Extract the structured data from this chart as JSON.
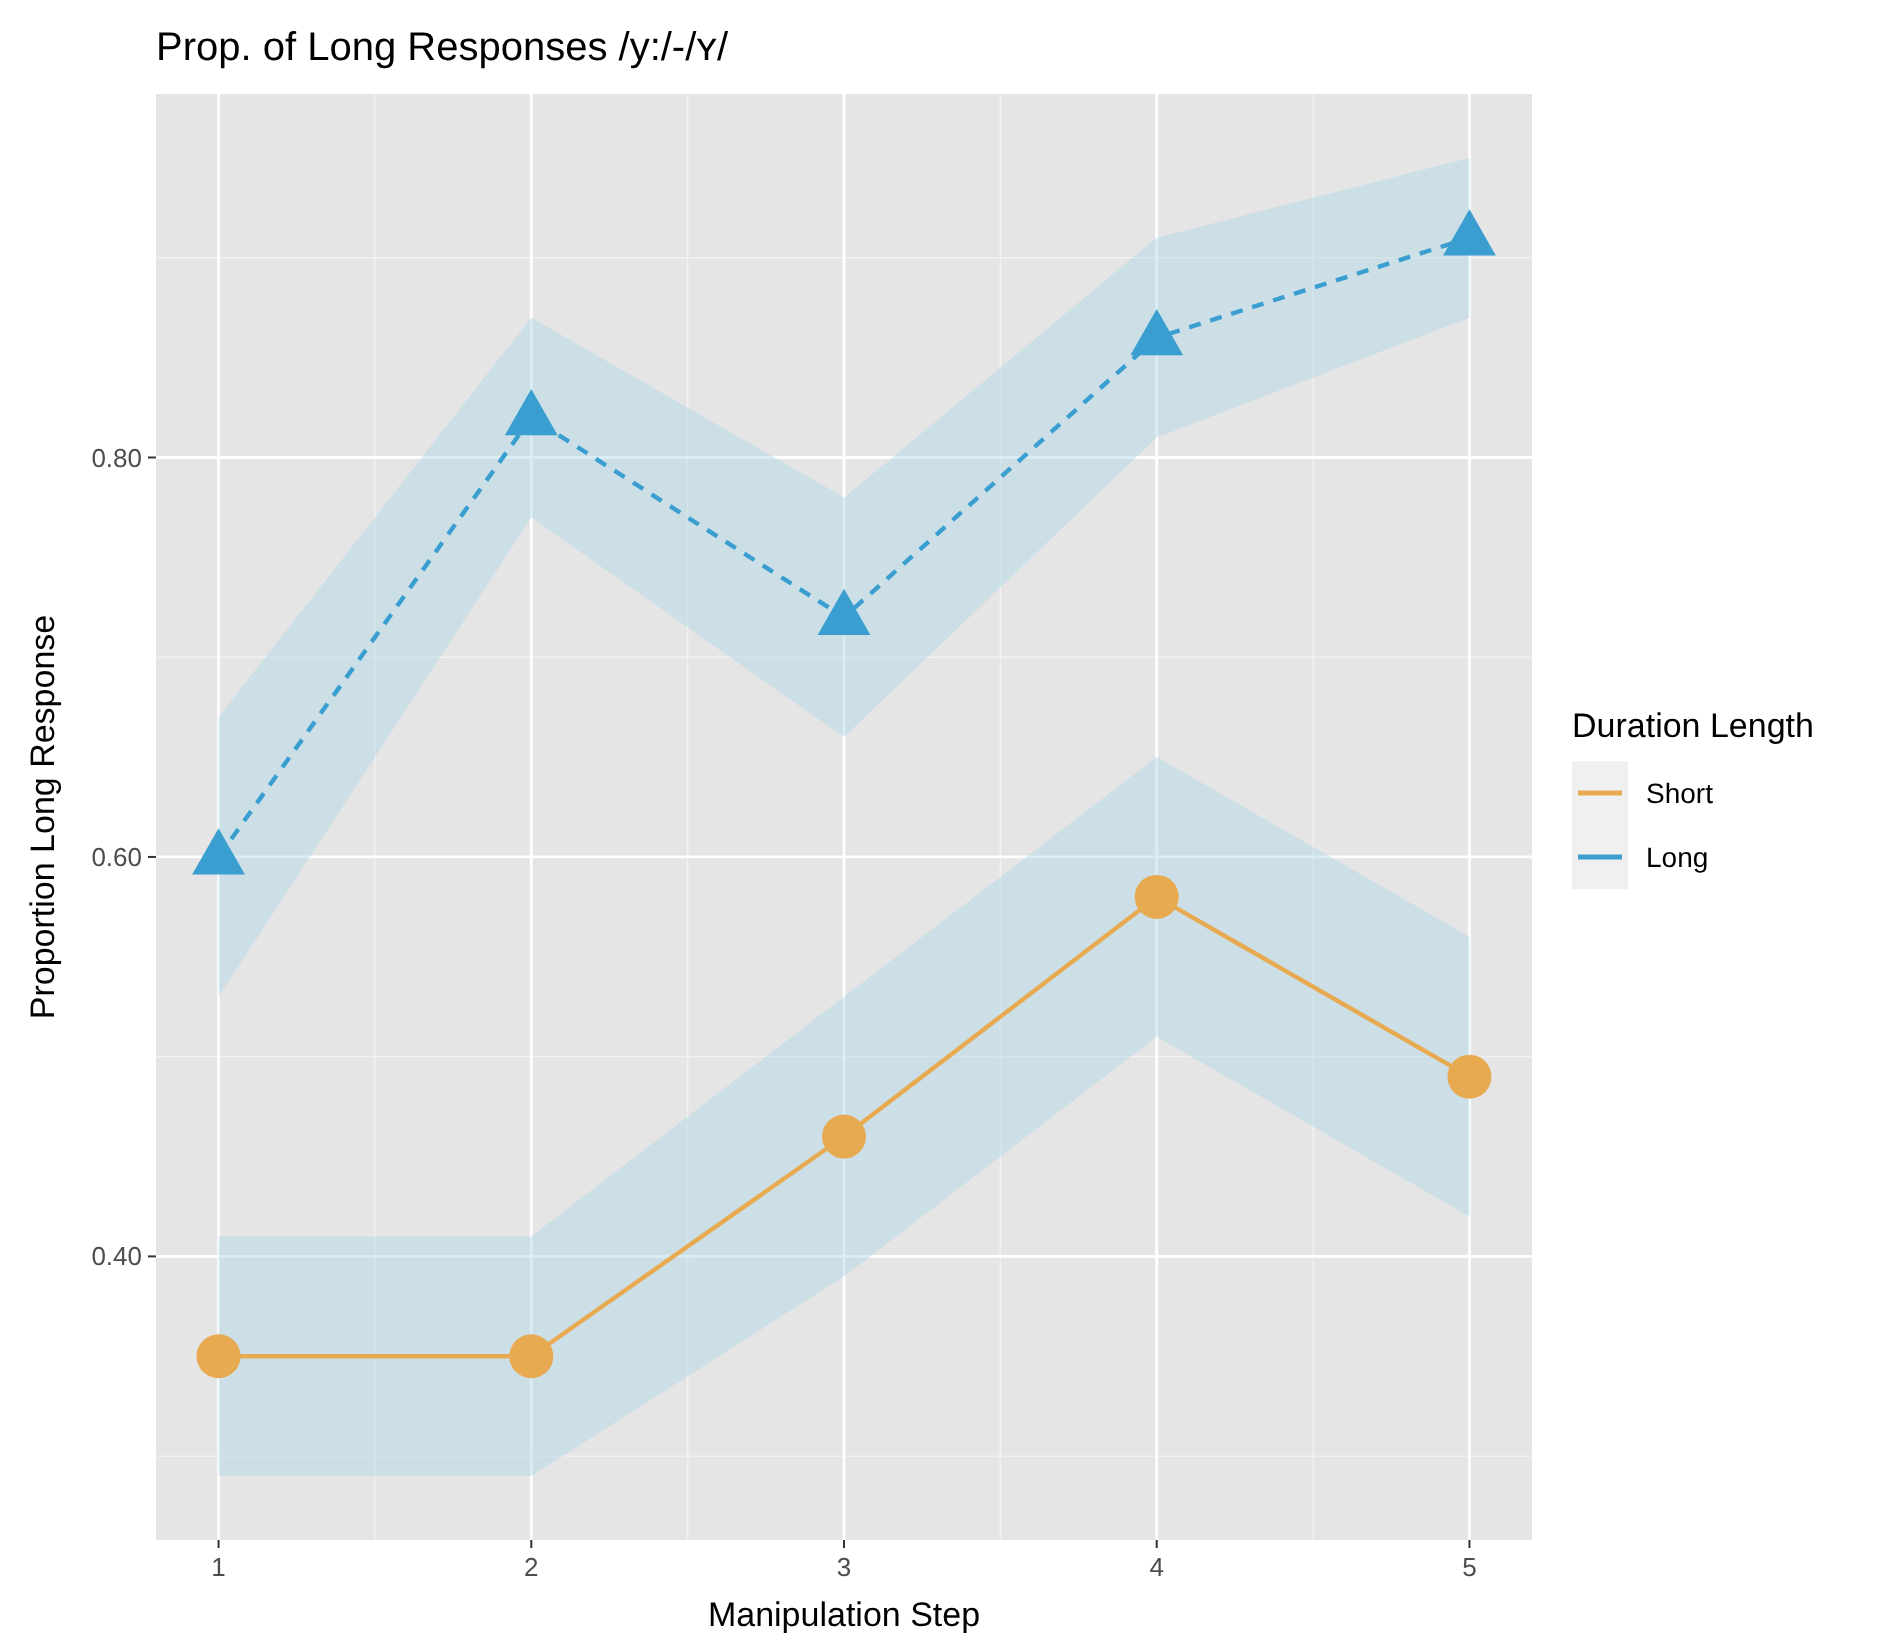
{
  "chart_data": {
    "type": "line",
    "title": "Prop. of Long Responses /y:/-/ʏ/",
    "xlabel": "Manipulation Step",
    "ylabel": "Proportion Long Response",
    "legend_title": "Duration Length",
    "x": [
      1,
      2,
      3,
      4,
      5
    ],
    "series": [
      {
        "name": "Short",
        "color": "#e8aa50",
        "values": [
          0.35,
          0.35,
          0.46,
          0.58,
          0.49
        ],
        "lower": [
          0.29,
          0.29,
          0.39,
          0.51,
          0.42
        ],
        "upper": [
          0.41,
          0.41,
          0.53,
          0.65,
          0.56
        ],
        "marker": "circle",
        "line_style": "solid"
      },
      {
        "name": "Long",
        "color": "#3a9fd0",
        "values": [
          0.6,
          0.82,
          0.72,
          0.86,
          0.91
        ],
        "lower": [
          0.53,
          0.77,
          0.66,
          0.81,
          0.87
        ],
        "upper": [
          0.67,
          0.87,
          0.78,
          0.91,
          0.95
        ],
        "marker": "triangle",
        "line_style": "dashed"
      }
    ],
    "xlim": [
      0.8,
      5.2
    ],
    "ylim": [
      0.258,
      0.982
    ],
    "xticks": [
      1,
      2,
      3,
      4,
      5
    ],
    "yticks": [
      {
        "value": 0.4,
        "label": "0.40"
      },
      {
        "value": 0.6,
        "label": "0.60"
      },
      {
        "value": 0.8,
        "label": "0.80"
      }
    ],
    "grid": true,
    "legend": "right"
  }
}
